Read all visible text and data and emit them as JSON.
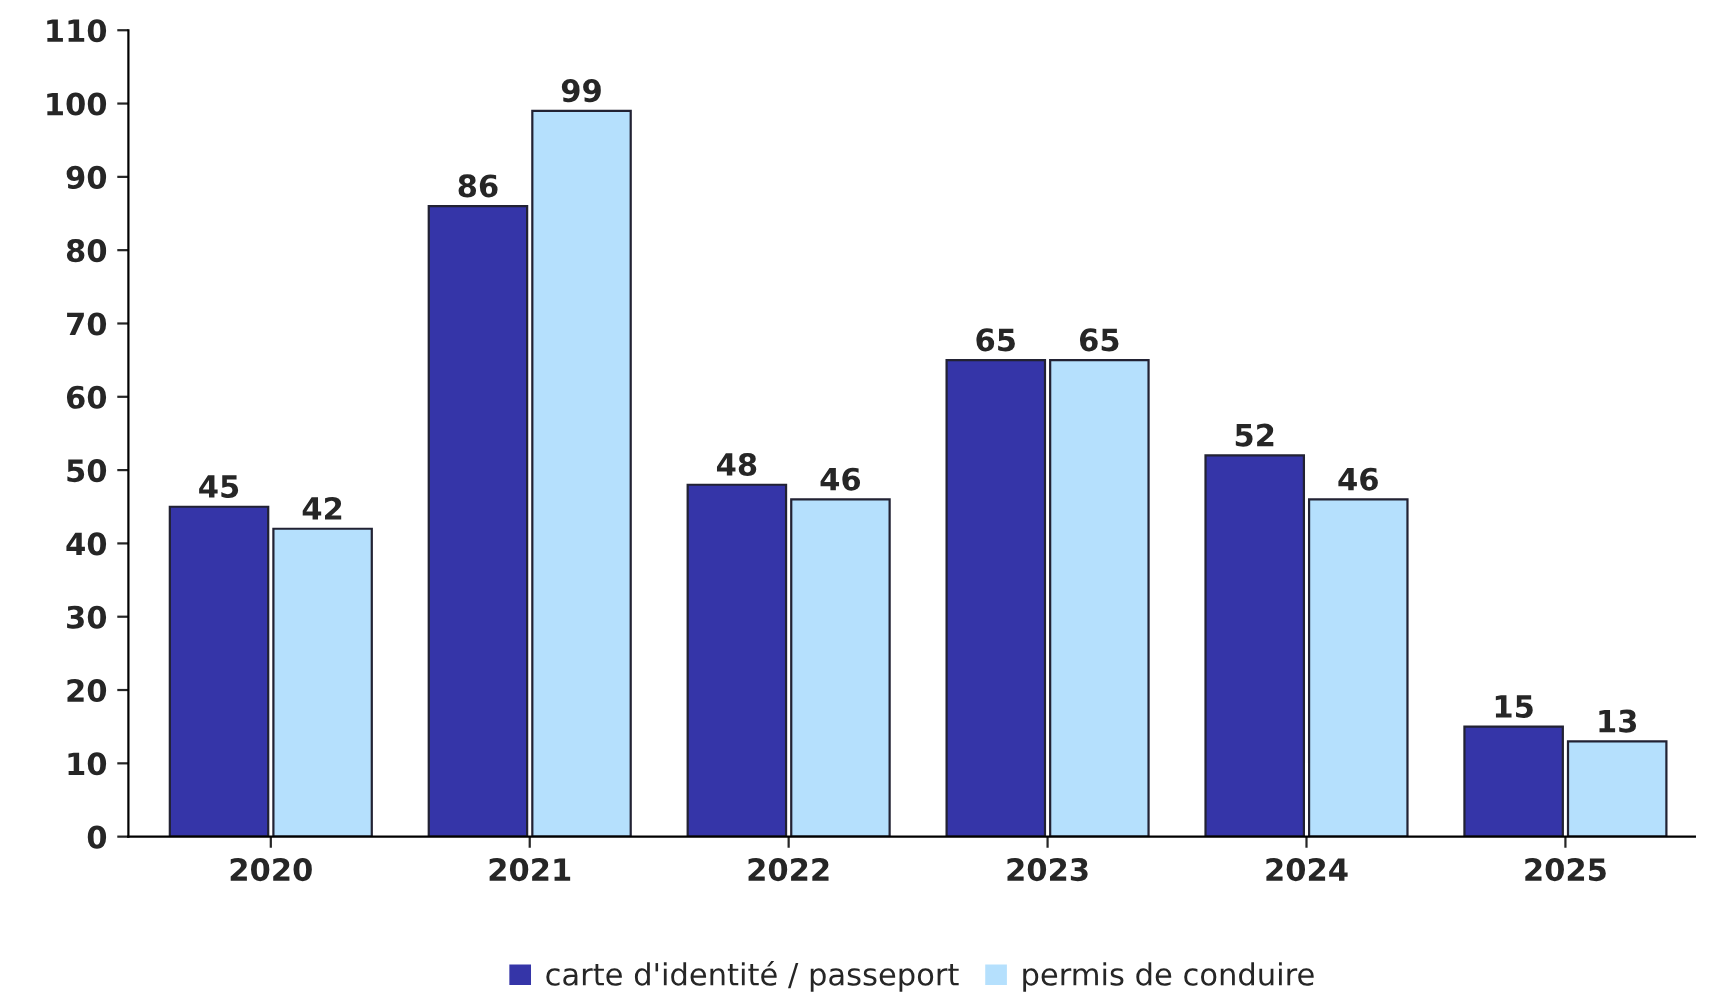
{
  "chart_data": {
    "type": "bar",
    "categories": [
      "2020",
      "2021",
      "2022",
      "2023",
      "2024",
      "2025"
    ],
    "series": [
      {
        "name": "carte d'identité / passeport",
        "color": "#3535a8",
        "values": [
          45,
          86,
          48,
          65,
          52,
          15
        ]
      },
      {
        "name": "permis de conduire",
        "color": "#b5e0fd",
        "values": [
          42,
          99,
          46,
          65,
          46,
          13
        ]
      }
    ],
    "ylim": [
      0,
      110
    ],
    "yticks": [
      0,
      10,
      20,
      30,
      40,
      50,
      60,
      70,
      80,
      90,
      100,
      110
    ],
    "data_labels": true,
    "grid": false,
    "legend": "bottom"
  }
}
